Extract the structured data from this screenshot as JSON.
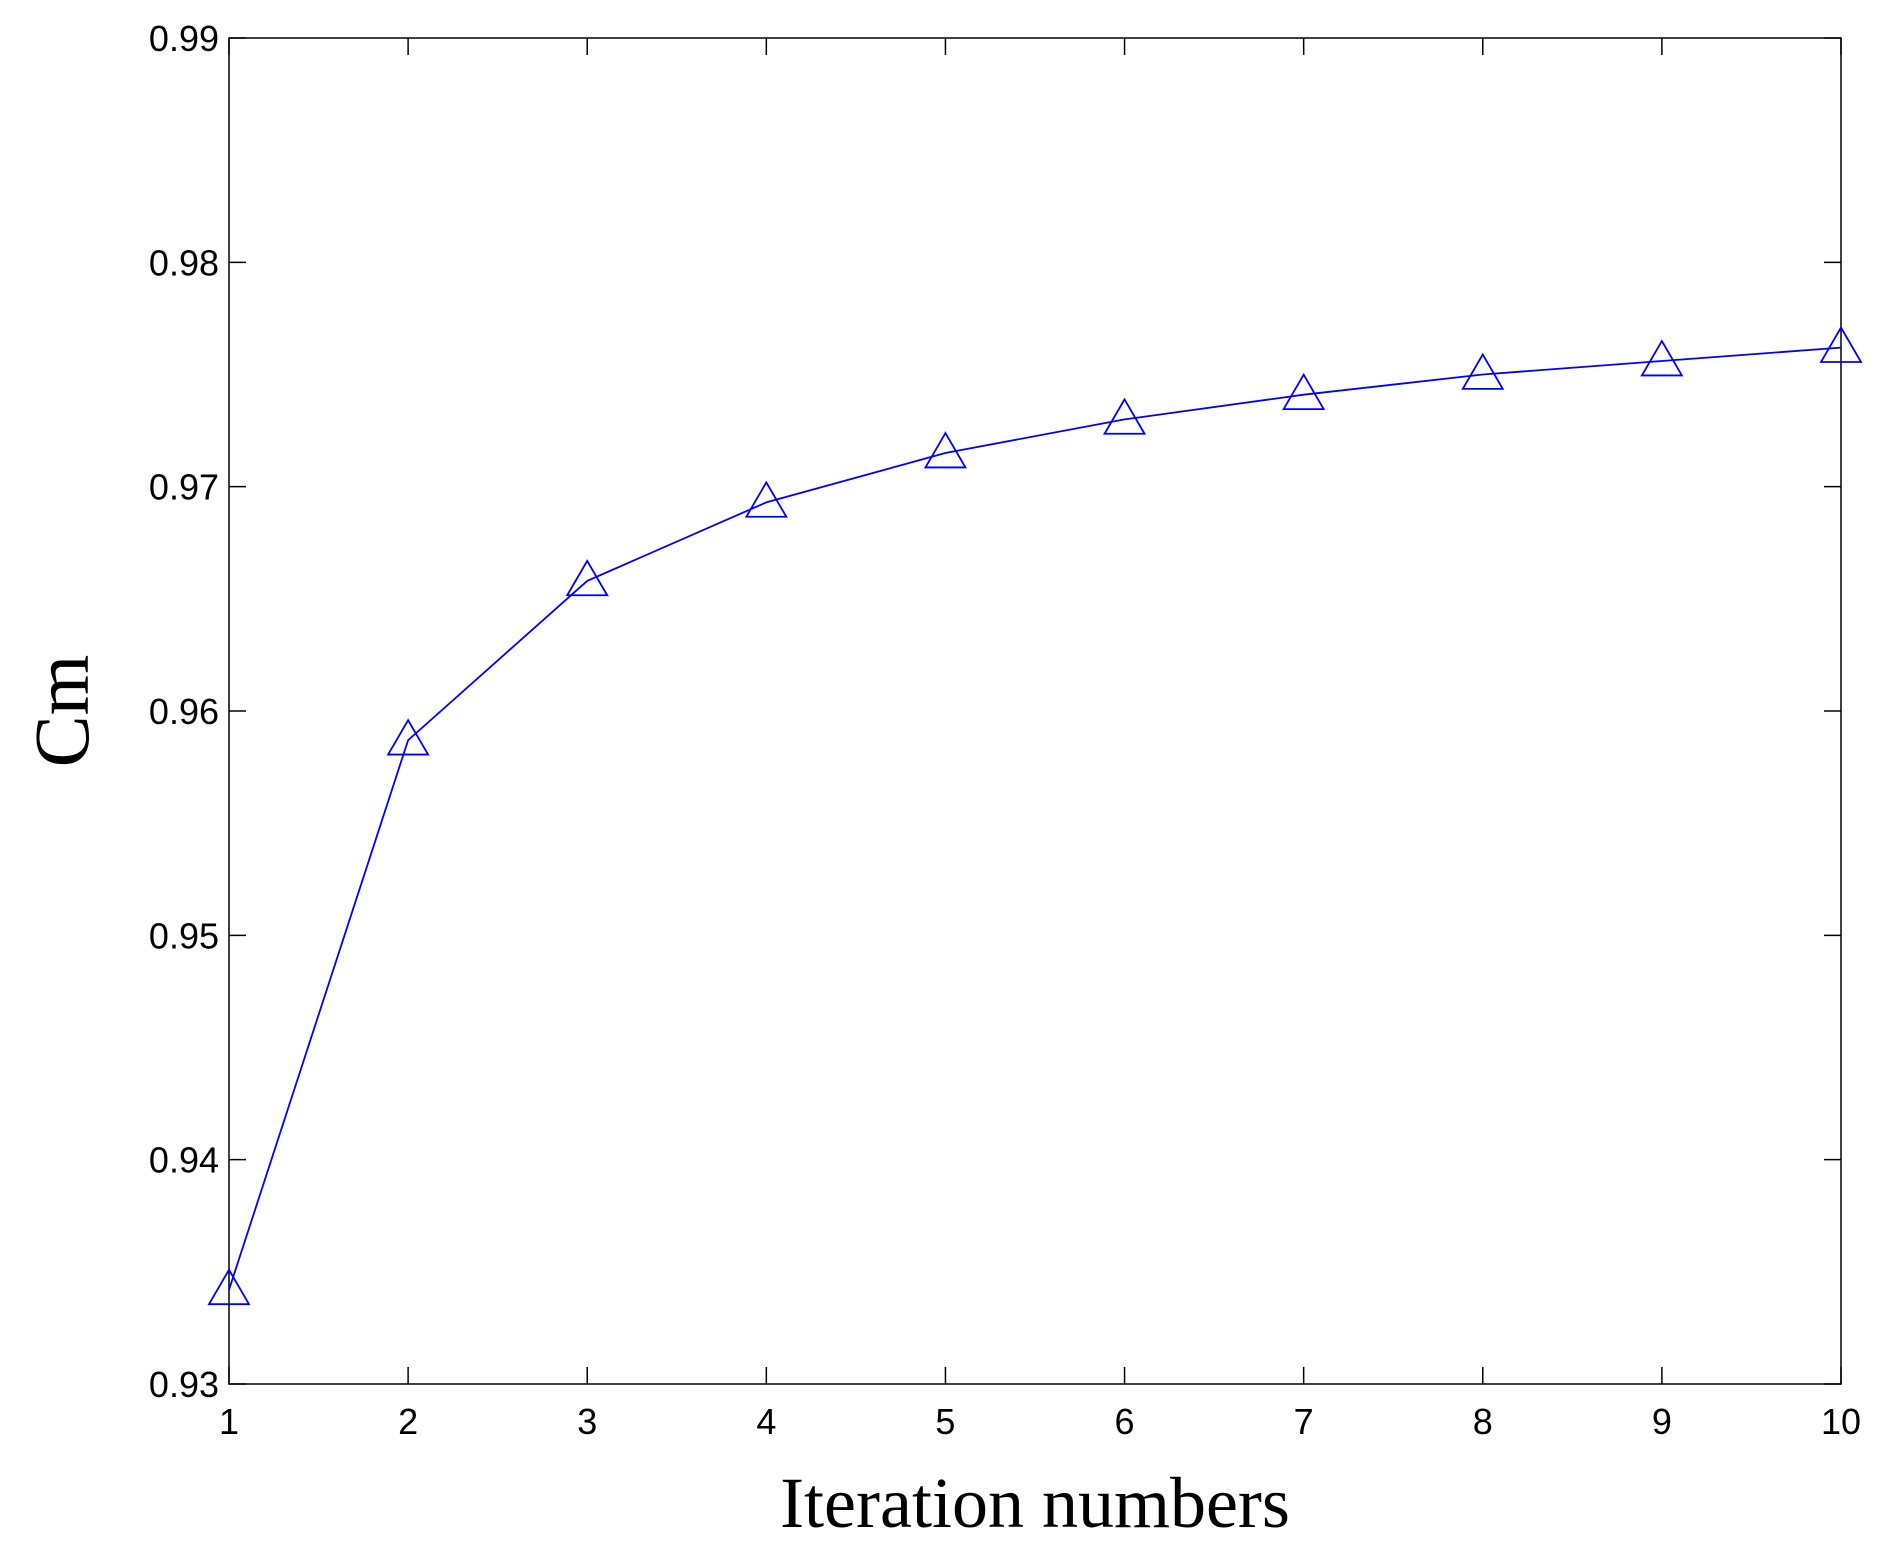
{
  "chart_data": {
    "type": "line",
    "title": "",
    "xlabel": "Iteration numbers",
    "ylabel": "Cm",
    "xlim": [
      1,
      10
    ],
    "ylim": [
      0.93,
      0.99
    ],
    "grid": false,
    "x_ticks": [
      1,
      2,
      3,
      4,
      5,
      6,
      7,
      8,
      9,
      10
    ],
    "x_tick_labels": [
      "1",
      "2",
      "3",
      "4",
      "5",
      "6",
      "7",
      "8",
      "9",
      "10"
    ],
    "y_ticks": [
      0.93,
      0.94,
      0.95,
      0.96,
      0.97,
      0.98,
      0.99
    ],
    "y_tick_labels": [
      "0.93",
      "0.94",
      "0.95",
      "0.96",
      "0.97",
      "0.98",
      "0.99"
    ],
    "series": [
      {
        "marker": "triangle-open",
        "color": "#0000ff",
        "x": [
          1,
          2,
          3,
          4,
          5,
          6,
          7,
          8,
          9,
          10
        ],
        "y": [
          0.9342,
          0.9587,
          0.9658,
          0.9693,
          0.9715,
          0.973,
          0.9741,
          0.975,
          0.9756,
          0.9762
        ]
      }
    ]
  }
}
